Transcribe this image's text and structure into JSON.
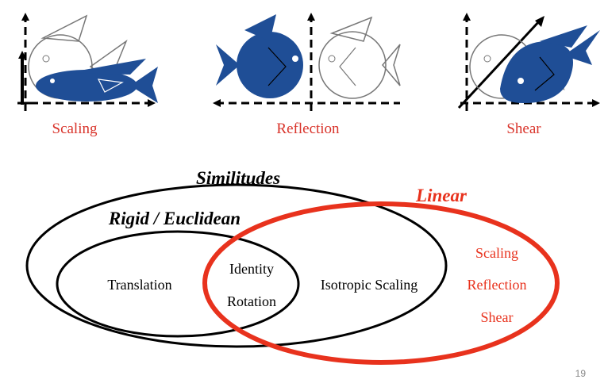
{
  "transform_examples": [
    {
      "caption": "Scaling",
      "icon": "scaled-fish-icon"
    },
    {
      "caption": "Reflection",
      "icon": "reflected-fish-icon"
    },
    {
      "caption": "Shear",
      "icon": "sheared-fish-icon"
    }
  ],
  "venn": {
    "similitudes_title": "Similitudes",
    "rigid_title": "Rigid / Euclidean",
    "linear_title": "Linear",
    "translation": "Translation",
    "identity": "Identity",
    "rotation": "Rotation",
    "isotropic_scaling": "Isotropic Scaling",
    "linear_only": [
      "Scaling",
      "Reflection",
      "Shear"
    ]
  },
  "colors": {
    "fish_fill": "#1f4e96",
    "accent_red": "#e8321d",
    "outline": "#000000"
  },
  "slide": {
    "number": "19"
  }
}
